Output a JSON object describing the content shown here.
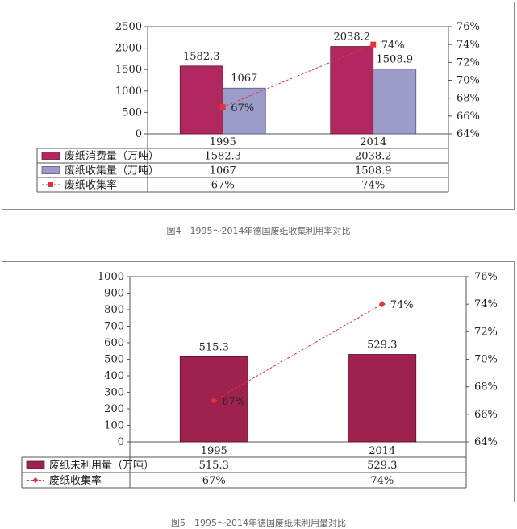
{
  "figures": [
    {
      "caption": "图4　1995～2014年德国废纸收集利用率对比",
      "chart_data": {
        "type": "bar",
        "categories": [
          "1995",
          "2014"
        ],
        "series": [
          {
            "name": "废纸消费量（万吨）",
            "kind": "bar",
            "axis": "left",
            "values": [
              1582.3,
              2038.2
            ],
            "table_values": [
              "1582.3",
              "2038.2"
            ],
            "labels": [
              "1582.3",
              "2038.2"
            ],
            "color": "#b0285f"
          },
          {
            "name": "废纸收集量（万吨）",
            "kind": "bar",
            "axis": "left",
            "values": [
              1067,
              1508.9
            ],
            "table_values": [
              "1067",
              "1508.9"
            ],
            "labels": [
              "1067",
              "1508.9"
            ],
            "color": "#9c9ccb"
          },
          {
            "name": "废纸收集率",
            "kind": "line",
            "axis": "right",
            "values": [
              67,
              74
            ],
            "table_values": [
              "67%",
              "74%"
            ],
            "labels": [
              "67%",
              "74%"
            ],
            "color": "#e0343a"
          }
        ],
        "ylim": [
          0,
          2500
        ],
        "yticks": [
          "0",
          "500",
          "1000",
          "1500",
          "2000",
          "2500"
        ],
        "y2lim": [
          64,
          76
        ],
        "y2ticks": [
          "64%",
          "66%",
          "68%",
          "70%",
          "72%",
          "74%",
          "76%"
        ],
        "legend": "data table below axis"
      }
    },
    {
      "caption": "图5　1995～2014年德国废纸未利用量对比",
      "chart_data": {
        "type": "bar",
        "categories": [
          "1995",
          "2014"
        ],
        "series": [
          {
            "name": "废纸未利用量（万吨）",
            "kind": "bar",
            "axis": "left",
            "values": [
              515.3,
              529.3
            ],
            "table_values": [
              "515.3",
              "529.3"
            ],
            "labels": [
              "515.3",
              "529.3"
            ],
            "color": "#9e2150"
          },
          {
            "name": "废纸收集率",
            "kind": "line",
            "axis": "right",
            "values": [
              67,
              74
            ],
            "table_values": [
              "67%",
              "74%"
            ],
            "labels": [
              "67%",
              "74%"
            ],
            "color": "#e0343a"
          }
        ],
        "ylim": [
          0,
          1000
        ],
        "yticks": [
          "0",
          "100",
          "200",
          "300",
          "400",
          "500",
          "600",
          "700",
          "800",
          "900",
          "1000"
        ],
        "y2lim": [
          64,
          76
        ],
        "y2ticks": [
          "64%",
          "66%",
          "68%",
          "70%",
          "72%",
          "74%",
          "76%"
        ],
        "legend": "data table below axis"
      }
    }
  ]
}
